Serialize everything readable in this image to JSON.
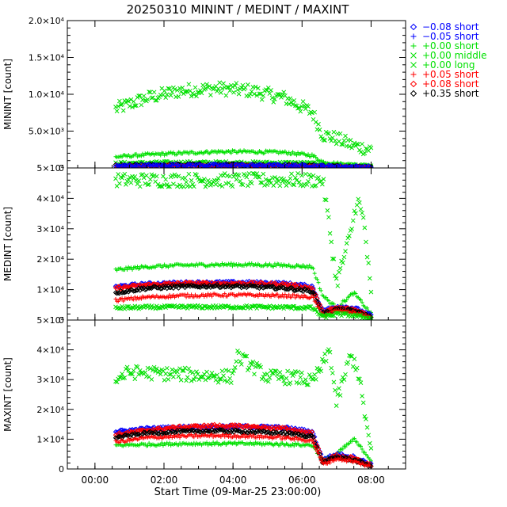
{
  "chart_data": {
    "type": "scatter",
    "title": "20250310 MININT / MEDINT / MAXINT",
    "xlabel": "Start Time (09-Mar-25 23:00:00)",
    "x_tick_labels": [
      "00:00",
      "02:00",
      "04:00",
      "06:00",
      "08:00"
    ],
    "x_tick_hours": [
      1,
      3,
      5,
      7,
      9
    ],
    "xlim": [
      0.2,
      10.0
    ],
    "x_data_range": [
      1.6,
      9.0
    ],
    "legend": {
      "position": "top-right",
      "entries": [
        {
          "symbol": "diamond",
          "label": "−0.08 short",
          "color": "#0000ff"
        },
        {
          "symbol": "plus",
          "label": "−0.05 short",
          "color": "#0000ff"
        },
        {
          "symbol": "plus",
          "label": "+0.00 short",
          "color": "#00e000"
        },
        {
          "symbol": "cross",
          "label": "+0.00 middle",
          "color": "#00e000"
        },
        {
          "symbol": "cross",
          "label": "+0.00 long",
          "color": "#00e000"
        },
        {
          "symbol": "plus",
          "label": "+0.05 short",
          "color": "#ff0000"
        },
        {
          "symbol": "diamond",
          "label": "+0.08 short",
          "color": "#ff0000"
        },
        {
          "symbol": "diamond",
          "label": "+0.35 short",
          "color": "#000000"
        }
      ]
    },
    "panels": [
      {
        "ylabel": "MININT [count]",
        "ylim": [
          0,
          20000
        ],
        "y_tick_labels": [
          "0",
          "5.0×10³",
          "1.0×10⁴",
          "1.5×10⁴",
          "2.0×10⁴"
        ],
        "y_tick_values": [
          0,
          5000,
          10000,
          15000,
          20000
        ],
        "series": [
          {
            "label": "+0.00 middle",
            "color": "#00e000",
            "symbol": "cross",
            "x": [
              1.6,
              2.5,
              3.5,
              4.5,
              5.5,
              6.5,
              7.3,
              7.6,
              8.0,
              8.5,
              9.0
            ],
            "y": [
              8000,
              9500,
              10500,
              10800,
              10500,
              9500,
              7500,
              4500,
              4000,
              3000,
              2500
            ]
          },
          {
            "label": "+0.00 short",
            "color": "#00e000",
            "symbol": "plus",
            "x": [
              1.6,
              2.5,
              3.5,
              4.5,
              5.5,
              6.5,
              7.3,
              7.6,
              8.0,
              8.5,
              9.0
            ],
            "y": [
              1500,
              1800,
              2000,
              2200,
              2200,
              2100,
              1700,
              800,
              600,
              400,
              200
            ]
          },
          {
            "label": "+0.00 long",
            "color": "#00e000",
            "symbol": "cross",
            "x": [
              1.6,
              3.0,
              5.0,
              7.0,
              9.0
            ],
            "y": [
              600,
              700,
              700,
              650,
              200
            ]
          },
          {
            "label": "+0.35 short",
            "color": "#000000",
            "symbol": "diamond",
            "x": [
              1.6,
              3.0,
              5.0,
              7.0,
              9.0
            ],
            "y": [
              300,
              400,
              400,
              350,
              100
            ]
          },
          {
            "label": "+0.05 short",
            "color": "#ff0000",
            "symbol": "plus",
            "x": [
              1.6,
              3.0,
              5.0,
              7.0,
              9.0
            ],
            "y": [
              200,
              300,
              300,
              250,
              100
            ]
          },
          {
            "label": "−0.08 short",
            "color": "#0000ff",
            "symbol": "diamond",
            "x": [
              1.6,
              3.0,
              5.0,
              7.0,
              9.0
            ],
            "y": [
              250,
              350,
              350,
              300,
              100
            ]
          }
        ]
      },
      {
        "ylabel": "MEDINT [count]",
        "ylim": [
          0,
          50000
        ],
        "y_tick_labels": [
          "0",
          "1×10⁴",
          "2×10⁴",
          "3×10⁴",
          "4×10⁴",
          "5×10⁴"
        ],
        "y_tick_values": [
          0,
          10000,
          20000,
          30000,
          40000,
          50000
        ],
        "series": [
          {
            "label": "+0.00 middle",
            "color": "#00e000",
            "symbol": "cross",
            "x": [
              7.6,
              7.8,
              8.0,
              8.2,
              8.4,
              8.6,
              8.8,
              9.0
            ],
            "y": [
              46000,
              30000,
              12000,
              20000,
              28000,
              40000,
              32000,
              8000
            ]
          },
          {
            "label": "+0.00 short",
            "color": "#00e000",
            "symbol": "plus",
            "x": [
              1.6,
              2.5,
              3.5,
              4.5,
              5.5,
              6.5,
              7.3,
              7.6,
              8.0,
              8.5,
              9.0
            ],
            "y": [
              16500,
              17500,
              18000,
              18200,
              18200,
              18000,
              17500,
              8000,
              4000,
              9000,
              2000
            ]
          },
          {
            "label": "−0.08 short",
            "color": "#0000ff",
            "symbol": "diamond",
            "x": [
              1.6,
              2.5,
              3.5,
              4.5,
              5.5,
              6.5,
              7.3,
              7.6,
              8.0,
              8.5,
              9.0
            ],
            "y": [
              11000,
              11800,
              12200,
              12300,
              12300,
              12000,
              11000,
              3000,
              4500,
              4000,
              1500
            ]
          },
          {
            "label": "+0.05 short",
            "color": "#ff0000",
            "symbol": "diamond",
            "x": [
              1.6,
              2.5,
              3.5,
              4.5,
              5.5,
              6.5,
              7.3,
              7.6,
              8.0,
              8.5,
              9.0
            ],
            "y": [
              10500,
              11500,
              12000,
              12000,
              12000,
              11700,
              10500,
              2500,
              4000,
              3500,
              1200
            ]
          },
          {
            "label": "+0.35 short",
            "color": "#000000",
            "symbol": "diamond",
            "x": [
              1.6,
              2.5,
              3.5,
              4.5,
              5.5,
              6.5,
              7.3,
              7.6,
              8.0,
              8.5,
              9.0
            ],
            "y": [
              9000,
              10500,
              11000,
              11200,
              11000,
              10500,
              9500,
              2000,
              3500,
              3000,
              1000
            ]
          },
          {
            "label": "+0.05 short",
            "color": "#ff0000",
            "symbol": "plus",
            "x": [
              1.6,
              2.5,
              3.5,
              4.5,
              5.5,
              6.5,
              7.3,
              7.6,
              8.0,
              8.5,
              9.0
            ],
            "y": [
              6500,
              7500,
              8000,
              8200,
              8200,
              8000,
              7500,
              1500,
              3000,
              2500,
              800
            ]
          },
          {
            "label": "+0.00 long",
            "color": "#00e000",
            "symbol": "cross",
            "x": [
              1.6,
              2.5,
              3.5,
              4.5,
              5.5,
              6.5,
              7.3,
              7.6,
              8.0,
              8.5,
              9.0
            ],
            "y": [
              4000,
              4200,
              4300,
              4300,
              4300,
              4200,
              4000,
              1000,
              2000,
              1500,
              500
            ]
          }
        ]
      },
      {
        "ylabel": "MAXINT [count]",
        "ylim": [
          0,
          50000
        ],
        "y_tick_labels": [
          "0",
          "1×10⁴",
          "2×10⁴",
          "3×10⁴",
          "4×10⁴",
          "5×10⁴"
        ],
        "y_tick_values": [
          0,
          10000,
          20000,
          30000,
          40000,
          50000
        ],
        "series": [
          {
            "label": "+0.00 middle",
            "color": "#00e000",
            "symbol": "cross",
            "x": [
              1.6,
              2.0,
              3.0,
              4.0,
              5.0,
              5.1,
              6.0,
              7.0,
              7.3,
              7.6,
              7.8,
              8.0,
              8.2,
              8.4,
              8.6,
              8.8,
              9.0
            ],
            "y": [
              30000,
              32500,
              32000,
              31500,
              31000,
              38000,
              31000,
              30500,
              29000,
              35000,
              40000,
              22000,
              30000,
              38000,
              34000,
              20000,
              5000
            ]
          },
          {
            "label": "+0.00 short",
            "color": "#00e000",
            "symbol": "plus",
            "x": [
              1.6,
              2.5,
              3.5,
              4.5,
              5.5,
              6.5,
              7.3,
              7.6,
              8.0,
              8.5,
              9.0
            ],
            "y": [
              8000,
              8200,
              8500,
              8500,
              8500,
              8300,
              8000,
              3000,
              5000,
              10000,
              3000
            ]
          },
          {
            "label": "−0.08 short",
            "color": "#0000ff",
            "symbol": "diamond",
            "x": [
              1.6,
              2.5,
              3.5,
              4.5,
              5.5,
              6.5,
              7.3,
              7.6,
              8.0,
              8.5,
              9.0
            ],
            "y": [
              12500,
              13500,
              14000,
              14200,
              14200,
              13800,
              12500,
              3000,
              5000,
              4000,
              1500
            ]
          },
          {
            "label": "+0.05 short",
            "color": "#ff0000",
            "symbol": "diamond",
            "x": [
              1.6,
              2.5,
              3.5,
              4.5,
              5.5,
              6.5,
              7.3,
              7.6,
              8.0,
              8.5,
              9.0
            ],
            "y": [
              11500,
              13000,
              14000,
              14500,
              14200,
              13500,
              12000,
              2500,
              4500,
              3500,
              1200
            ]
          },
          {
            "label": "+0.35 short",
            "color": "#000000",
            "symbol": "diamond",
            "x": [
              1.6,
              2.5,
              3.5,
              4.5,
              5.5,
              6.5,
              7.3,
              7.6,
              8.0,
              8.5,
              9.0
            ],
            "y": [
              10500,
              12000,
              12500,
              12800,
              12500,
              12000,
              11000,
              2000,
              4000,
              3000,
              1000
            ]
          },
          {
            "label": "+0.05 short",
            "color": "#ff0000",
            "symbol": "plus",
            "x": [
              1.6,
              2.5,
              3.5,
              4.5,
              5.5,
              6.5,
              7.3,
              7.6,
              8.0,
              8.5,
              9.0
            ],
            "y": [
              9000,
              10500,
              11000,
              11200,
              11000,
              10500,
              9500,
              1500,
              3500,
              2500,
              800
            ]
          }
        ]
      }
    ]
  }
}
